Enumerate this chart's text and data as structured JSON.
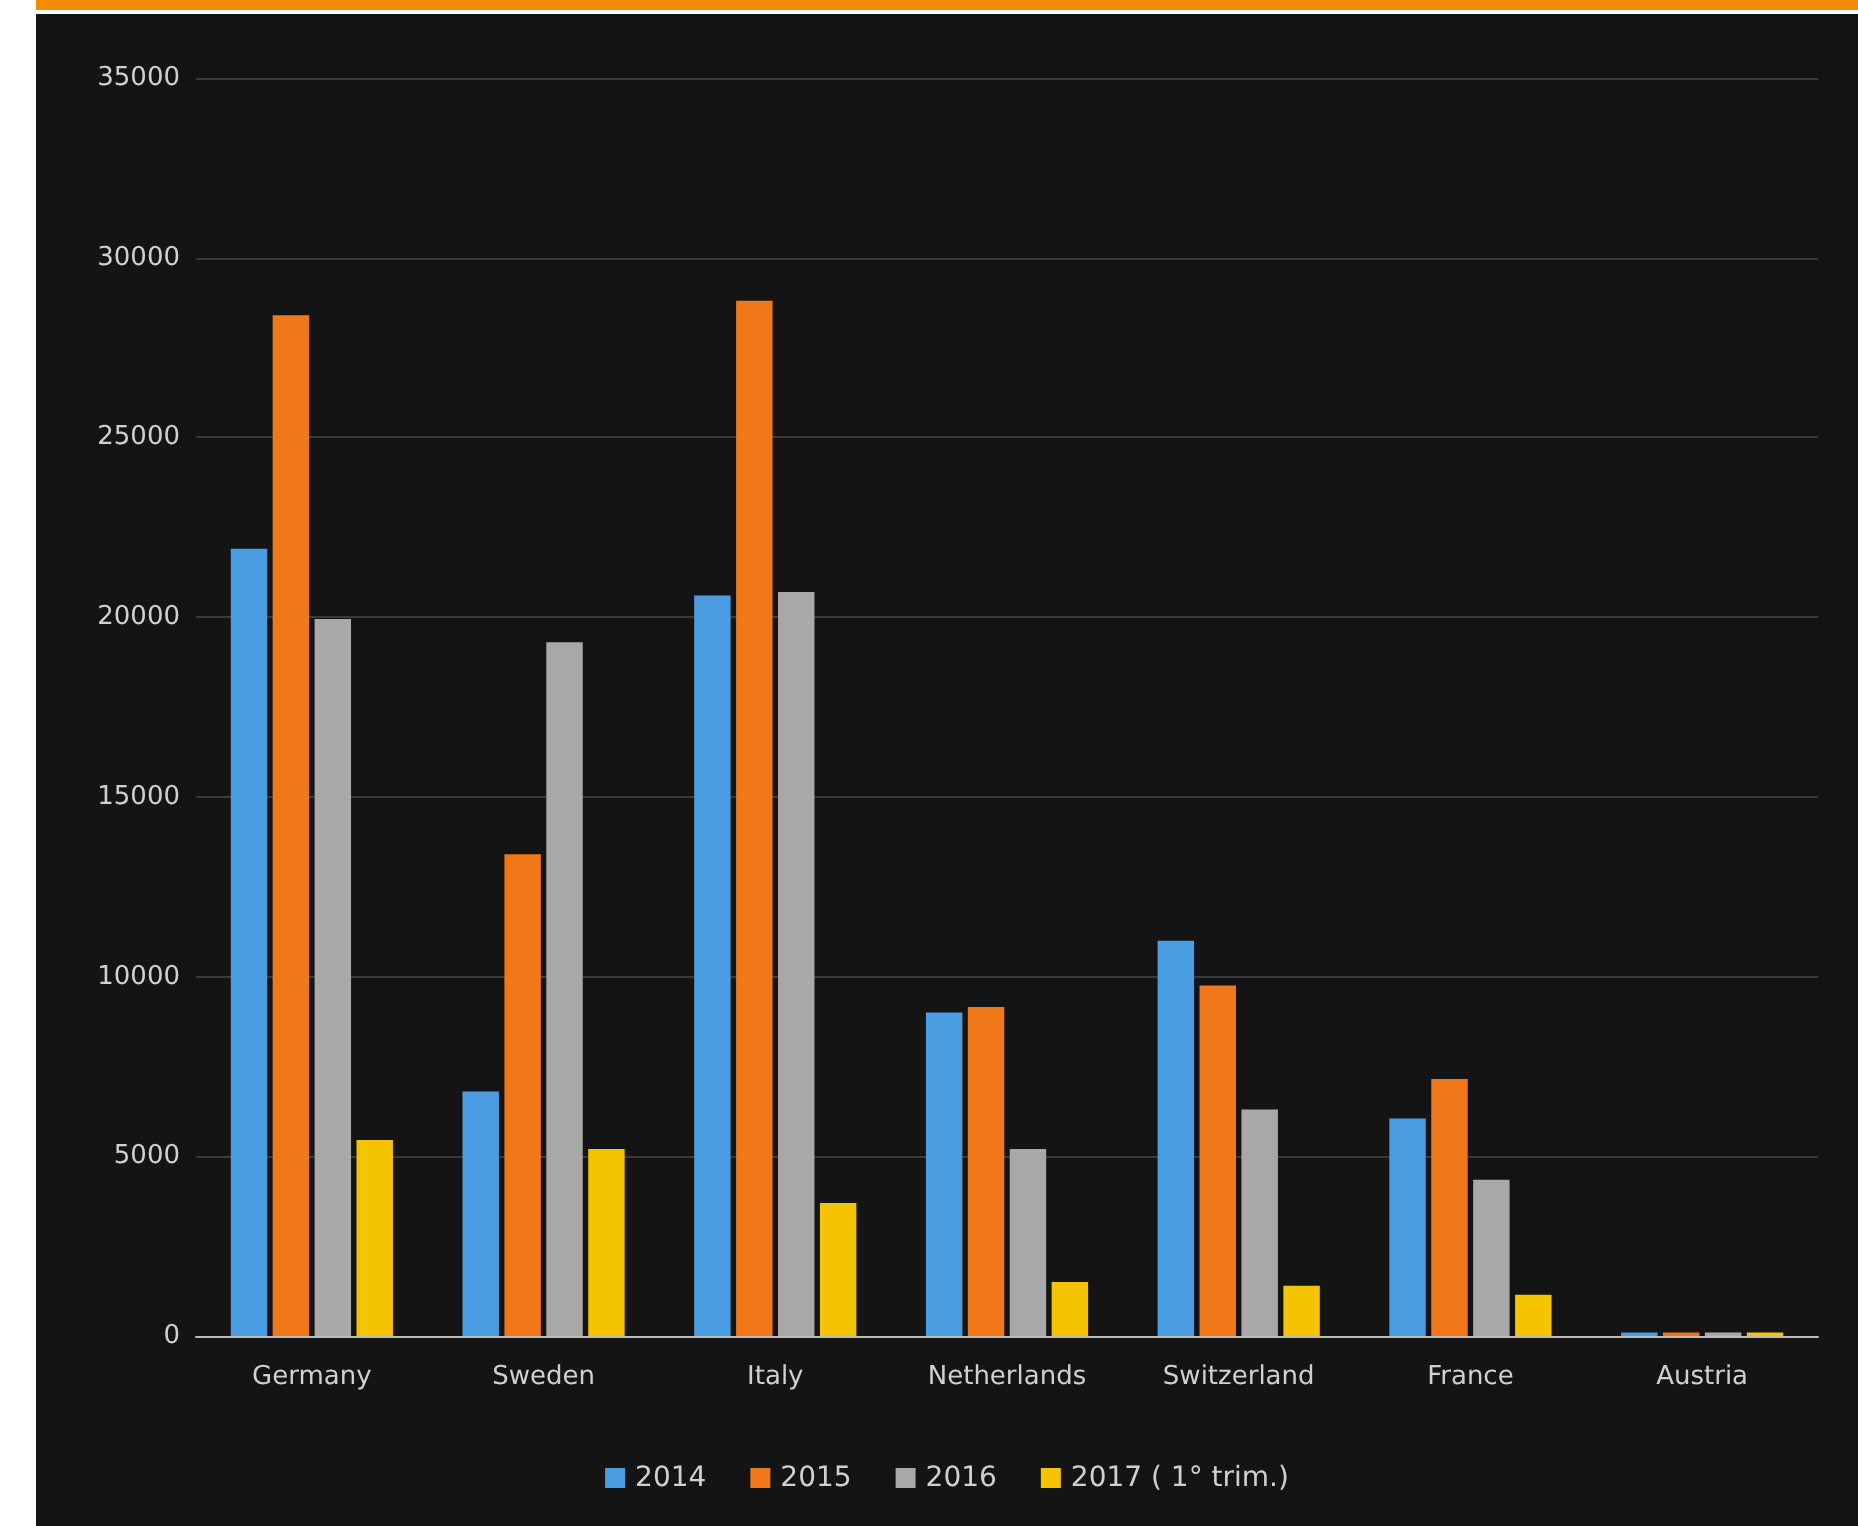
{
  "chart_data": {
    "type": "bar",
    "categories": [
      "Germany",
      "Sweden",
      "Italy",
      "Netherlands",
      "Switzerland",
      "France",
      "Austria"
    ],
    "series": [
      {
        "name": "2014",
        "color": "#4a9de0",
        "values": [
          21900,
          6800,
          20600,
          9000,
          11000,
          6050,
          100
        ]
      },
      {
        "name": "2015",
        "color": "#f07818",
        "values": [
          28400,
          13400,
          28800,
          9150,
          9750,
          7150,
          100
        ]
      },
      {
        "name": "2016",
        "color": "#a8a8a8",
        "values": [
          19950,
          19300,
          20700,
          5200,
          6300,
          4350,
          100
        ]
      },
      {
        "name": "2017 ( 1° trim.)",
        "color": "#f5c400",
        "values": [
          5450,
          5200,
          3700,
          1500,
          1400,
          1150,
          100
        ]
      }
    ],
    "ylim": [
      0,
      35000
    ],
    "yticks": [
      0,
      5000,
      10000,
      15000,
      20000,
      25000,
      30000,
      35000
    ],
    "grid": "y",
    "legend": "bottom"
  }
}
